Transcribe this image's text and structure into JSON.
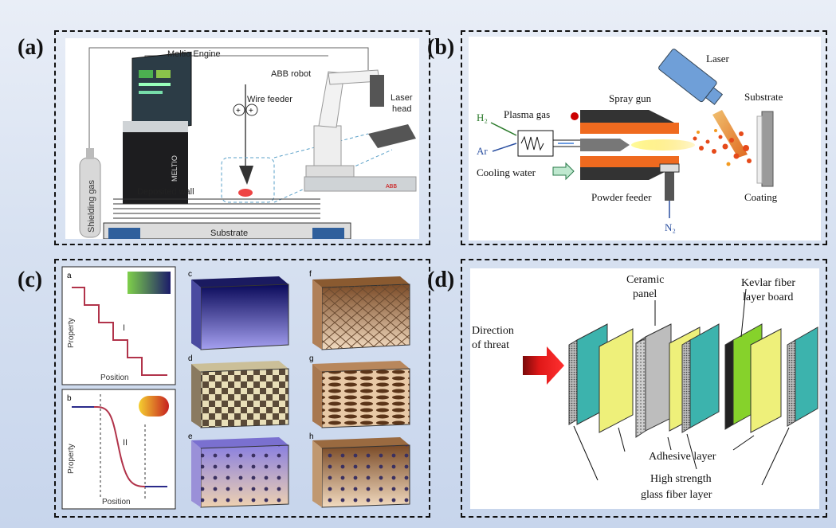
{
  "panels": {
    "a": {
      "label": "(a)",
      "meltio_engine": "Meltio Engine",
      "abb_robot": "ABB robot",
      "wire_feeder": "Wire feeder",
      "laser_head_1": "Laser",
      "laser_head_2": "head",
      "deposited_wall": "Deposited wall",
      "shielding_gas": "Shielding gas",
      "substrate": "Substrate",
      "brand": "MELTIO",
      "robot_brand": "ABB"
    },
    "b": {
      "label": "(b)",
      "laser": "Laser",
      "spray_gun": "Spray gun",
      "substrate": "Substrate",
      "plasma_gas": "Plasma gas",
      "h2": "H₂",
      "ar": "Ar",
      "cooling_water": "Cooling water",
      "powder_feeder": "Powder feeder",
      "coating": "Coating",
      "n2": "N₂"
    },
    "c": {
      "label": "(c)",
      "sub_a": "a",
      "sub_b": "b",
      "sub_c": "c",
      "sub_d": "d",
      "sub_e": "e",
      "sub_f": "f",
      "sub_g": "g",
      "sub_h": "h",
      "roman_i": "I",
      "roman_ii": "II",
      "property_a": "Property",
      "position_a": "Position",
      "property_b": "Property",
      "position_b": "Position"
    },
    "d": {
      "label": "(d)",
      "direction_1": "Direction",
      "direction_2": "of threat",
      "ceramic_1": "Ceramic",
      "ceramic_2": "panel",
      "kevlar_1": "Kevlar fiber",
      "kevlar_2": "layer board",
      "adhesive": "Adhesive layer",
      "glass_1": "High strength",
      "glass_2": "glass fiber layer"
    }
  },
  "colors": {
    "navy": "#2a2a8a",
    "plasma_orange": "#ef6a1f",
    "laser_blue": "#6f9fd8",
    "teal_layer": "#3cb3ad",
    "yellow_layer": "#eef07a",
    "kevlar_green": "#86d22b",
    "step_curve": "#b1334a",
    "arrow_red": "#e01818"
  }
}
